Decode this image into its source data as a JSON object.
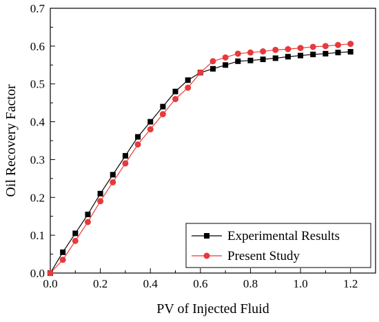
{
  "chart_data": {
    "type": "line",
    "xlabel": "PV of Injected Fluid",
    "ylabel": "Oil Recovery Factor",
    "xlim": [
      0.0,
      1.3
    ],
    "ylim": [
      0.0,
      0.7
    ],
    "xticks": [
      0.0,
      0.2,
      0.4,
      0.6,
      0.8,
      1.0,
      1.2
    ],
    "xtick_labels": [
      "0.0",
      "0.2",
      "0.4",
      "0.6",
      "0.8",
      "1.0",
      "1.2"
    ],
    "yticks": [
      0.0,
      0.1,
      0.2,
      0.3,
      0.4,
      0.5,
      0.6,
      0.7
    ],
    "ytick_labels": [
      "0.0",
      "0.1",
      "0.2",
      "0.3",
      "0.4",
      "0.5",
      "0.6",
      "0.7"
    ],
    "grid": false,
    "legend_position": "bottom-right",
    "series": [
      {
        "name": "Experimental Results",
        "color": "#000000",
        "marker": "square",
        "x": [
          0,
          0.05,
          0.1,
          0.15,
          0.2,
          0.25,
          0.3,
          0.35,
          0.4,
          0.45,
          0.5,
          0.55,
          0.6,
          0.65,
          0.7,
          0.75,
          0.8,
          0.85,
          0.9,
          0.95,
          1.0,
          1.05,
          1.1,
          1.15,
          1.2
        ],
        "y": [
          0.0,
          0.055,
          0.105,
          0.155,
          0.21,
          0.26,
          0.31,
          0.36,
          0.4,
          0.44,
          0.48,
          0.51,
          0.53,
          0.54,
          0.55,
          0.56,
          0.562,
          0.565,
          0.568,
          0.572,
          0.575,
          0.578,
          0.58,
          0.583,
          0.585
        ]
      },
      {
        "name": "Present Study",
        "color": "#e8393b",
        "marker": "circle",
        "x": [
          0,
          0.05,
          0.1,
          0.15,
          0.2,
          0.25,
          0.3,
          0.35,
          0.4,
          0.45,
          0.5,
          0.55,
          0.6,
          0.65,
          0.7,
          0.75,
          0.8,
          0.85,
          0.9,
          0.95,
          1.0,
          1.05,
          1.1,
          1.15,
          1.2
        ],
        "y": [
          0.0,
          0.035,
          0.085,
          0.135,
          0.19,
          0.24,
          0.29,
          0.34,
          0.38,
          0.42,
          0.46,
          0.49,
          0.53,
          0.56,
          0.57,
          0.58,
          0.583,
          0.586,
          0.59,
          0.592,
          0.595,
          0.598,
          0.6,
          0.603,
          0.606
        ]
      }
    ]
  }
}
